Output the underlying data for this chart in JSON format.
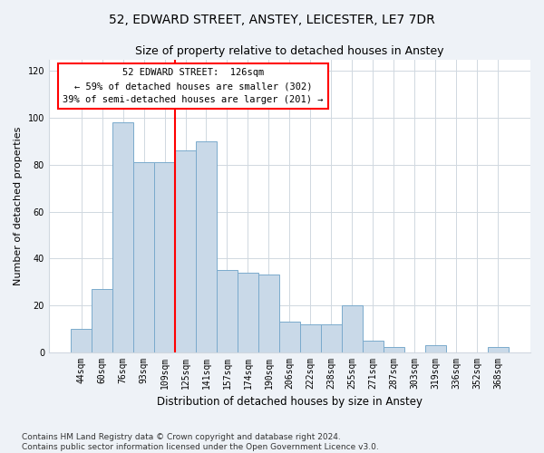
{
  "title1": "52, EDWARD STREET, ANSTEY, LEICESTER, LE7 7DR",
  "title2": "Size of property relative to detached houses in Anstey",
  "xlabel": "Distribution of detached houses by size in Anstey",
  "ylabel": "Number of detached properties",
  "bar_labels": [
    "44sqm",
    "60sqm",
    "76sqm",
    "93sqm",
    "109sqm",
    "125sqm",
    "141sqm",
    "157sqm",
    "174sqm",
    "190sqm",
    "206sqm",
    "222sqm",
    "238sqm",
    "255sqm",
    "271sqm",
    "287sqm",
    "303sqm",
    "319sqm",
    "336sqm",
    "352sqm",
    "368sqm"
  ],
  "bar_heights": [
    10,
    27,
    98,
    81,
    81,
    86,
    90,
    35,
    34,
    33,
    13,
    12,
    12,
    20,
    5,
    2,
    0,
    3,
    0,
    0,
    2
  ],
  "bar_color": "#c9d9e8",
  "bar_edge_color": "#7aaacc",
  "vline_color": "red",
  "vline_x_index": 5,
  "annotation_text": "52 EDWARD STREET:  126sqm\n← 59% of detached houses are smaller (302)\n39% of semi-detached houses are larger (201) →",
  "annotation_box_color": "white",
  "annotation_box_edge_color": "red",
  "ylim": [
    0,
    125
  ],
  "yticks": [
    0,
    20,
    40,
    60,
    80,
    100,
    120
  ],
  "footer": "Contains HM Land Registry data © Crown copyright and database right 2024.\nContains public sector information licensed under the Open Government Licence v3.0.",
  "title1_fontsize": 10,
  "title2_fontsize": 9,
  "xlabel_fontsize": 8.5,
  "ylabel_fontsize": 8,
  "tick_fontsize": 7,
  "annot_fontsize": 7.5,
  "footer_fontsize": 6.5,
  "background_color": "#eef2f7",
  "plot_bg_color": "#ffffff",
  "grid_color": "#d0d8e0"
}
